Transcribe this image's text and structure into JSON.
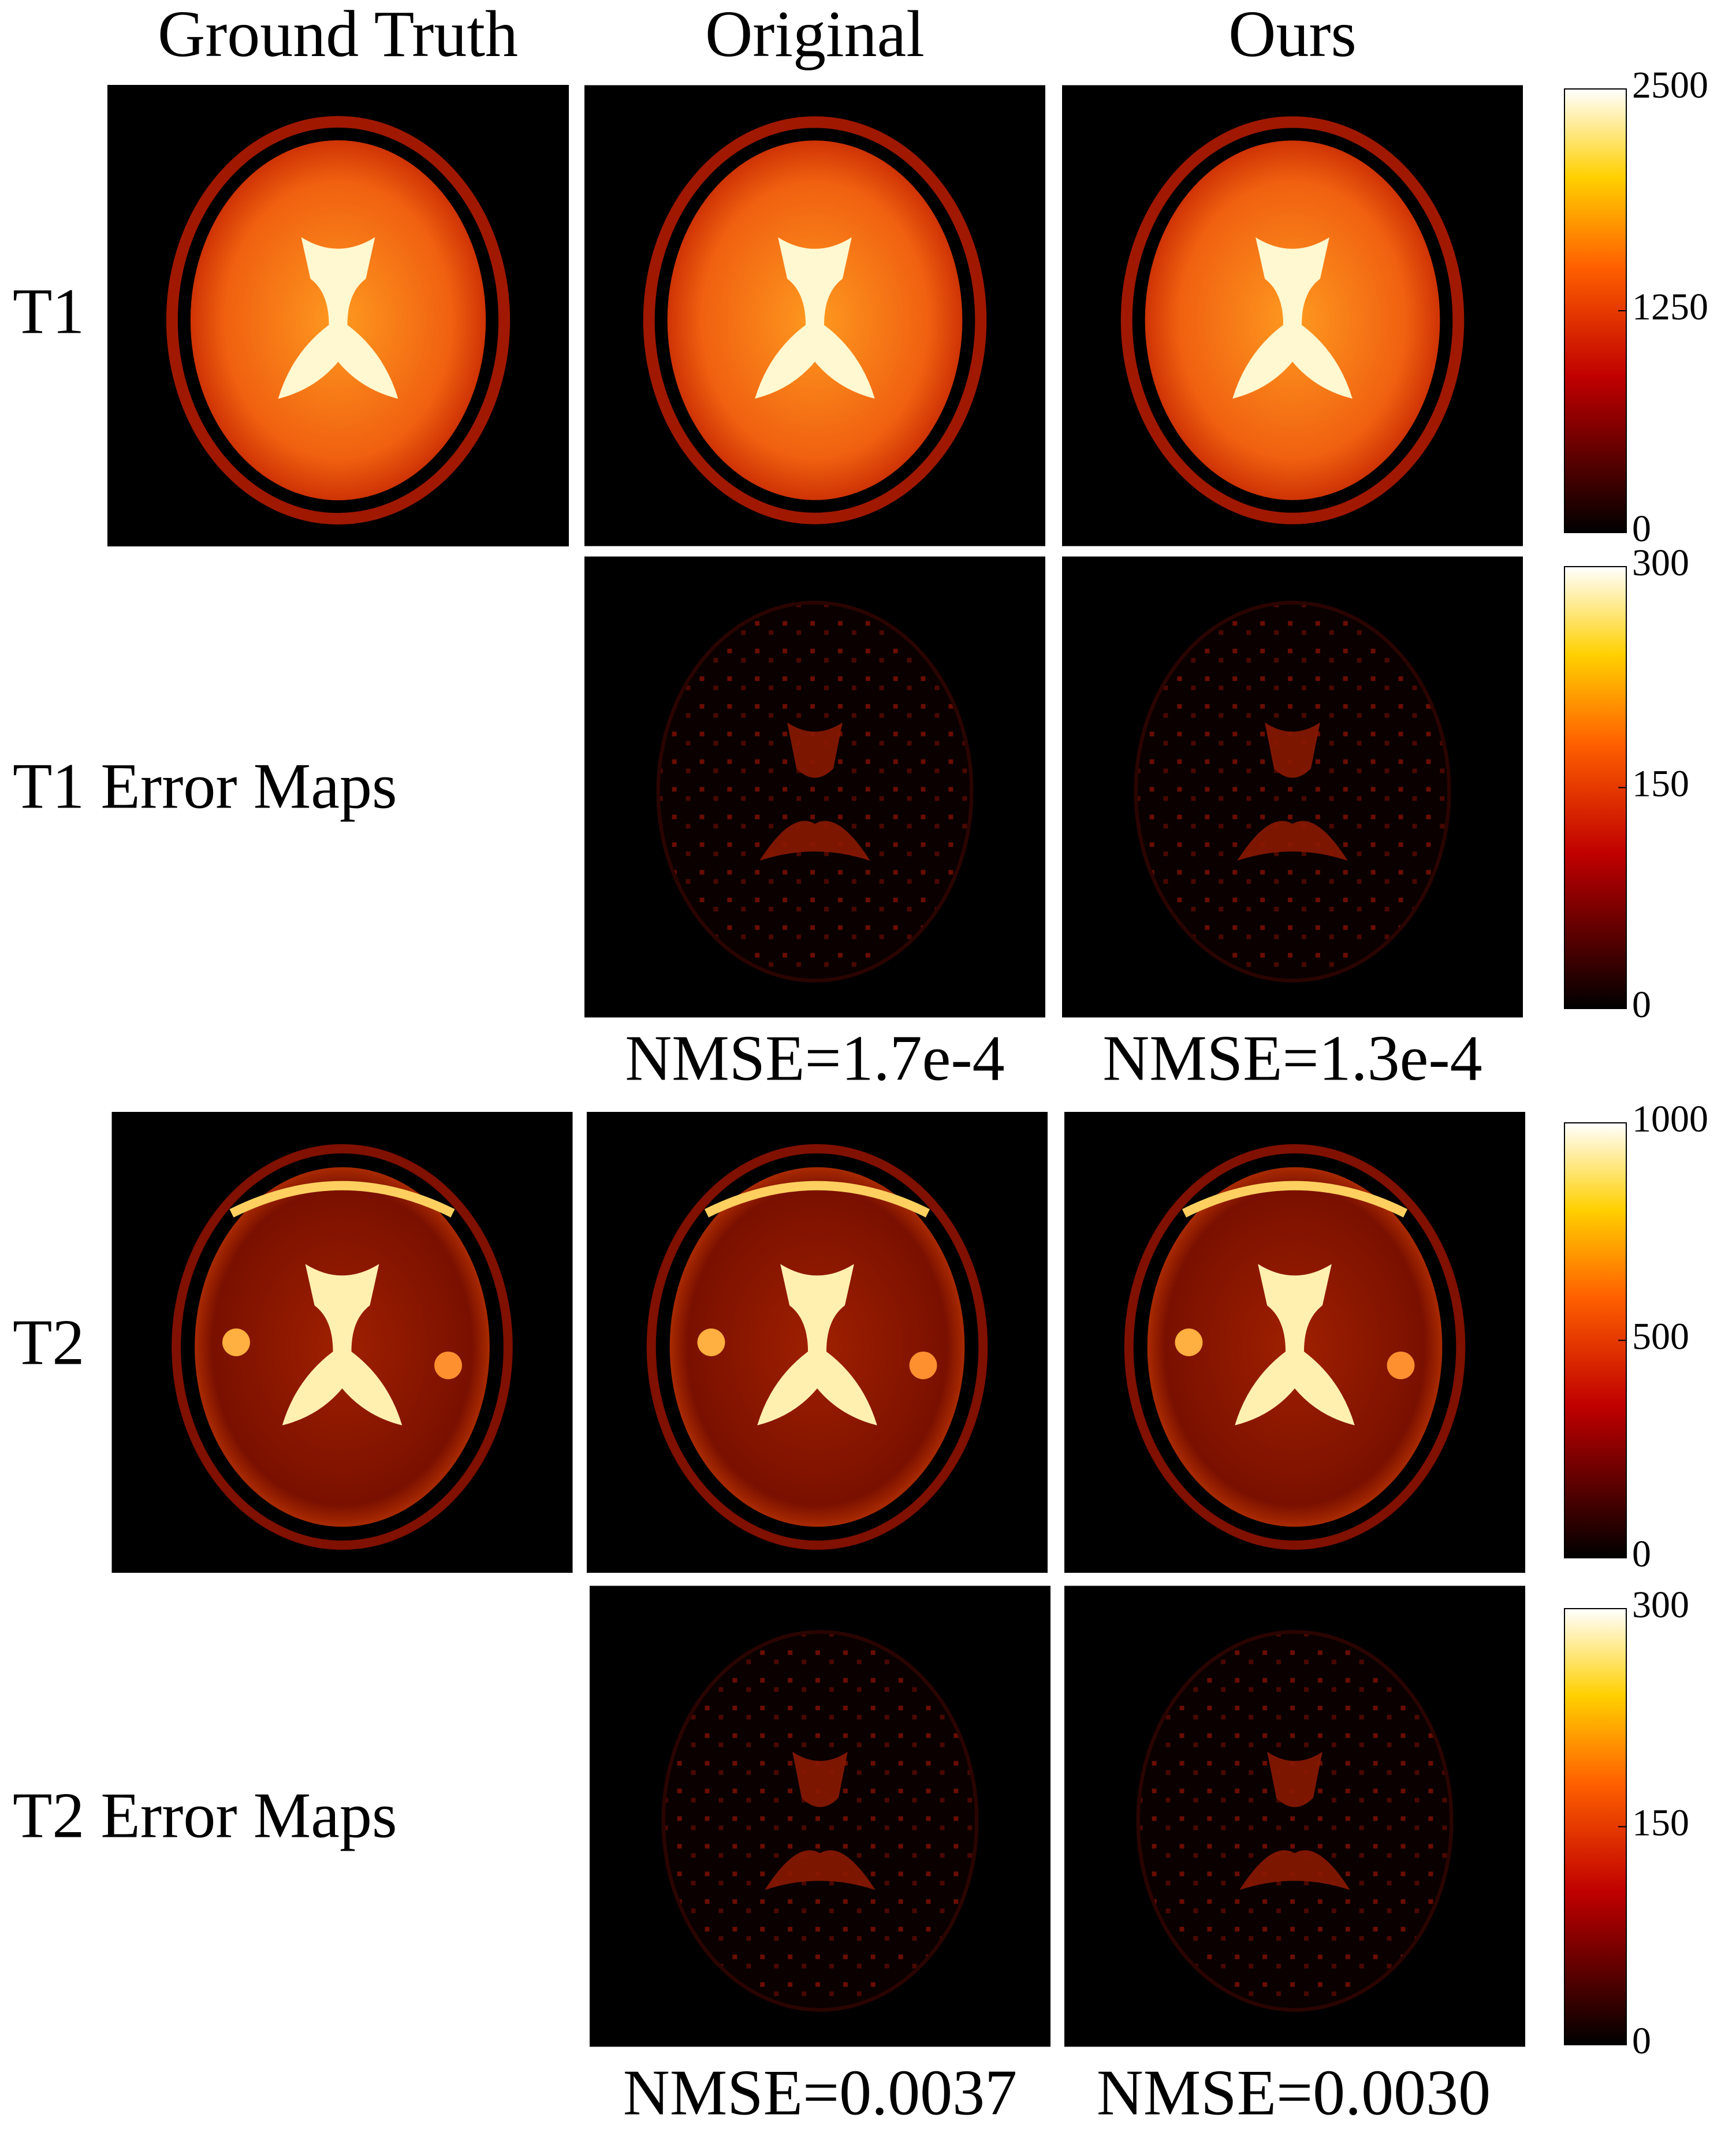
{
  "header": {
    "columns": [
      "Ground Truth",
      "Original",
      "Ours"
    ]
  },
  "rows": [
    {
      "label": "T1"
    },
    {
      "label": "T1 Error Maps",
      "nmse": [
        "NMSE=1.7e-4",
        "NMSE=1.3e-4"
      ]
    },
    {
      "label": "T2"
    },
    {
      "label": "T2 Error Maps",
      "nmse": [
        "NMSE=0.0037",
        "NMSE=0.0030"
      ]
    }
  ],
  "colorbars": [
    {
      "range": [
        0,
        2500
      ],
      "ticks": [
        0,
        1250,
        2500
      ]
    },
    {
      "range": [
        0,
        300
      ],
      "ticks": [
        0,
        150,
        300
      ]
    },
    {
      "range": [
        0,
        1000
      ],
      "ticks": [
        0,
        500,
        1000
      ]
    },
    {
      "range": [
        0,
        300
      ],
      "ticks": [
        0,
        150,
        300
      ]
    }
  ]
}
